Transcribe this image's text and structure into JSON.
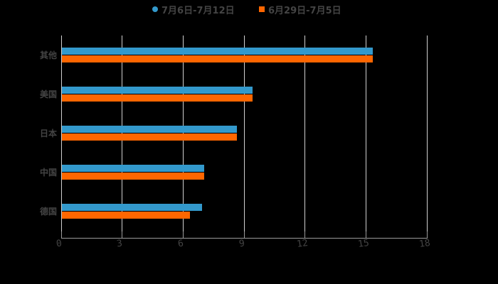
{
  "chart_data": {
    "type": "bar",
    "orientation": "horizontal",
    "title": "",
    "xlabel": "",
    "ylabel": "",
    "categories": [
      "其他",
      "美国",
      "日本",
      "中国",
      "德国"
    ],
    "series": [
      {
        "name": "7月6日-7月12日",
        "color": "#3399cc",
        "values": [
          15.3,
          9.4,
          8.6,
          7.0,
          6.9
        ]
      },
      {
        "name": "6月29日-7月5日",
        "color": "#ff6600",
        "values": [
          15.3,
          9.4,
          8.6,
          7.0,
          6.3
        ]
      }
    ],
    "xlim": [
      0,
      18
    ],
    "xticks": [
      "0",
      "3",
      "6",
      "9",
      "12",
      "15",
      "18"
    ],
    "grid": true,
    "legend_position": "top"
  },
  "legend": {
    "items": [
      {
        "label": "7月6日-7月12日",
        "color": "#3399cc",
        "marker": "circle"
      },
      {
        "label": "6月29日-7月5日",
        "color": "#ff6600",
        "marker": "square"
      }
    ]
  },
  "colors": {
    "background": "#000000",
    "text": "#444444",
    "grid": "#d0d0d0",
    "axis": "#9a9a9a"
  }
}
